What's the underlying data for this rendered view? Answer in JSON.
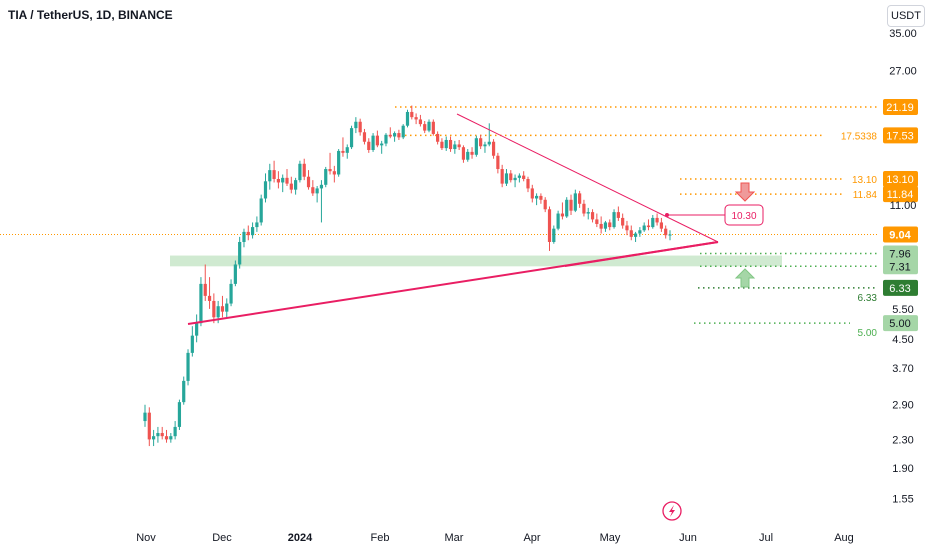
{
  "header": {
    "title": "TIA / TetherUS, 1D, BINANCE",
    "currency": "USDT"
  },
  "colors": {
    "up": "#26a69a",
    "down": "#ef5350",
    "trend": "#e91e63",
    "support": "#4caf50",
    "resist": "#ff9800"
  },
  "chart_data": {
    "type": "candlestick",
    "title": "TIA / TetherUS, 1D, BINANCE",
    "y_scale": "log",
    "y_ticks": [
      "35.00",
      "27.00",
      "21.19",
      "17.53",
      "13.10",
      "11.84",
      "11.00",
      "9.04",
      "7.96",
      "7.31",
      "6.33",
      "5.50",
      "5.00",
      "4.50",
      "3.70",
      "2.90",
      "2.30",
      "1.90",
      "1.55"
    ],
    "x_ticks": [
      "Nov",
      "Dec",
      "2024",
      "Feb",
      "Mar",
      "Apr",
      "May",
      "Jun",
      "Jul",
      "Aug"
    ],
    "last_price": "9.04",
    "price_labels": [
      {
        "text": "21.19",
        "color": "#ff9800"
      },
      {
        "text": "17.53",
        "color": "#ff9800"
      },
      {
        "text": "13.10",
        "color": "#ff9800"
      },
      {
        "text": "11.84",
        "color": "#ff9800"
      },
      {
        "text": "7.96",
        "color": "#a5d6a7"
      },
      {
        "text": "7.31",
        "color": "#a5d6a7"
      },
      {
        "text": "6.33",
        "color": "#2e7d32"
      },
      {
        "text": "5.00",
        "color": "#a5d6a7"
      }
    ],
    "level_annotations": [
      {
        "value": 21.19,
        "label": "",
        "color": "#ff9800"
      },
      {
        "value": 17.53,
        "label": "17.5338",
        "color": "#ff9800"
      },
      {
        "value": 13.1,
        "label": "13.10",
        "color": "#ff9800"
      },
      {
        "value": 11.84,
        "label": "11.84",
        "color": "#ff9800"
      },
      {
        "value": 7.96,
        "label": "",
        "color": "#4caf50"
      },
      {
        "value": 7.31,
        "label": "",
        "color": "#4caf50"
      },
      {
        "value": 6.33,
        "label": "6.33",
        "color": "#2e7d32"
      },
      {
        "value": 5.0,
        "label": "5.00",
        "color": "#4caf50"
      }
    ],
    "callout": "10.30",
    "series": [
      {
        "ohlc": [
          [
            2.6,
            2.9,
            2.5,
            2.75
          ],
          [
            2.75,
            2.85,
            2.2,
            2.3
          ],
          [
            2.3,
            2.45,
            2.2,
            2.35
          ],
          [
            2.35,
            2.5,
            2.25,
            2.4
          ],
          [
            2.4,
            2.5,
            2.3,
            2.35
          ],
          [
            2.35,
            2.45,
            2.25,
            2.3
          ],
          [
            2.3,
            2.4,
            2.25,
            2.35
          ],
          [
            2.35,
            2.6,
            2.3,
            2.5
          ],
          [
            2.5,
            3.0,
            2.45,
            2.95
          ],
          [
            2.95,
            3.5,
            2.9,
            3.4
          ],
          [
            3.4,
            4.2,
            3.3,
            4.1
          ],
          [
            4.1,
            4.9,
            4.0,
            4.6
          ],
          [
            4.6,
            5.3,
            4.4,
            5.0
          ],
          [
            5.0,
            6.8,
            4.9,
            6.5
          ],
          [
            6.5,
            7.4,
            5.8,
            6.0
          ],
          [
            6.0,
            6.8,
            5.5,
            5.8
          ],
          [
            5.8,
            6.1,
            5.0,
            5.2
          ],
          [
            5.2,
            5.8,
            5.0,
            5.6
          ],
          [
            5.6,
            6.0,
            5.2,
            5.4
          ],
          [
            5.4,
            5.9,
            5.2,
            5.7
          ],
          [
            5.7,
            6.7,
            5.6,
            6.5
          ],
          [
            6.5,
            7.6,
            6.4,
            7.4
          ],
          [
            7.4,
            8.9,
            7.2,
            8.6
          ],
          [
            8.6,
            9.4,
            8.3,
            9.2
          ],
          [
            9.2,
            9.6,
            8.7,
            9.0
          ],
          [
            9.0,
            9.8,
            8.8,
            9.5
          ],
          [
            9.5,
            10.2,
            9.2,
            9.8
          ],
          [
            9.8,
            11.8,
            9.6,
            11.5
          ],
          [
            11.5,
            13.6,
            11.2,
            12.9
          ],
          [
            12.9,
            14.5,
            12.2,
            13.9
          ],
          [
            13.9,
            14.8,
            12.8,
            13.1
          ],
          [
            13.1,
            13.8,
            12.3,
            12.8
          ],
          [
            12.8,
            13.5,
            12.0,
            13.2
          ],
          [
            13.2,
            14.0,
            12.5,
            12.7
          ],
          [
            12.7,
            13.3,
            11.9,
            12.2
          ],
          [
            12.2,
            13.2,
            11.8,
            13.0
          ],
          [
            13.0,
            14.8,
            12.8,
            14.5
          ],
          [
            14.5,
            15.0,
            13.0,
            13.3
          ],
          [
            13.3,
            13.9,
            12.2,
            12.4
          ],
          [
            12.4,
            13.0,
            11.7,
            11.9
          ],
          [
            11.9,
            12.5,
            11.2,
            12.3
          ],
          [
            12.3,
            13.0,
            9.8,
            12.6
          ],
          [
            12.6,
            14.2,
            12.4,
            14.0
          ],
          [
            14.0,
            15.6,
            13.5,
            13.8
          ],
          [
            13.8,
            14.3,
            12.8,
            13.5
          ],
          [
            13.5,
            16.0,
            13.3,
            15.8
          ],
          [
            15.8,
            17.3,
            15.2,
            15.6
          ],
          [
            15.6,
            16.5,
            15.0,
            16.2
          ],
          [
            16.2,
            18.7,
            16.0,
            18.4
          ],
          [
            18.4,
            19.8,
            17.8,
            19.2
          ],
          [
            19.2,
            19.6,
            17.5,
            17.9
          ],
          [
            17.9,
            18.3,
            16.5,
            16.8
          ],
          [
            16.8,
            17.2,
            15.6,
            15.9
          ],
          [
            15.9,
            17.8,
            15.7,
            17.5
          ],
          [
            17.5,
            18.1,
            16.2,
            16.4
          ],
          [
            16.4,
            16.9,
            15.5,
            16.6
          ],
          [
            16.6,
            17.8,
            16.3,
            17.6
          ],
          [
            17.6,
            18.5,
            17.2,
            17.4
          ],
          [
            17.4,
            18.0,
            16.8,
            17.8
          ],
          [
            17.8,
            18.2,
            17.0,
            17.3
          ],
          [
            17.3,
            18.9,
            17.1,
            18.7
          ],
          [
            18.7,
            20.8,
            18.5,
            20.5
          ],
          [
            20.5,
            21.4,
            19.5,
            19.8
          ],
          [
            19.8,
            20.3,
            18.9,
            19.5
          ],
          [
            19.5,
            20.1,
            18.6,
            18.9
          ],
          [
            18.9,
            19.3,
            17.8,
            18.1
          ],
          [
            18.1,
            19.5,
            17.9,
            19.2
          ],
          [
            19.2,
            19.5,
            17.5,
            17.7
          ],
          [
            17.7,
            18.0,
            16.5,
            16.8
          ],
          [
            16.8,
            17.2,
            15.9,
            16.1
          ],
          [
            16.1,
            17.4,
            15.8,
            17.0
          ],
          [
            17.0,
            17.4,
            15.7,
            16.0
          ],
          [
            16.0,
            16.9,
            15.5,
            16.5
          ],
          [
            16.5,
            17.0,
            15.9,
            16.2
          ],
          [
            16.2,
            16.4,
            14.6,
            14.9
          ],
          [
            14.9,
            16.0,
            14.7,
            15.7
          ],
          [
            15.7,
            16.2,
            15.0,
            15.4
          ],
          [
            15.4,
            17.5,
            15.2,
            17.2
          ],
          [
            17.2,
            17.6,
            16.0,
            16.3
          ],
          [
            16.3,
            16.8,
            15.6,
            16.5
          ],
          [
            16.5,
            19.0,
            16.3,
            16.8
          ],
          [
            16.8,
            17.1,
            15.0,
            15.3
          ],
          [
            15.3,
            15.6,
            13.6,
            14.0
          ],
          [
            14.0,
            14.4,
            12.4,
            12.7
          ],
          [
            12.7,
            14.0,
            12.5,
            13.6
          ],
          [
            13.6,
            13.9,
            12.8,
            13.0
          ],
          [
            13.0,
            13.5,
            12.4,
            13.2
          ],
          [
            13.2,
            13.6,
            12.8,
            13.4
          ],
          [
            13.4,
            13.8,
            12.9,
            13.1
          ],
          [
            13.1,
            13.3,
            12.0,
            12.3
          ],
          [
            12.3,
            12.6,
            11.2,
            11.5
          ],
          [
            11.5,
            11.9,
            11.0,
            11.7
          ],
          [
            11.7,
            11.9,
            11.1,
            11.4
          ],
          [
            11.4,
            11.6,
            10.5,
            10.7
          ],
          [
            10.7,
            10.9,
            8.1,
            8.6
          ],
          [
            8.6,
            9.6,
            8.5,
            9.4
          ],
          [
            9.4,
            10.6,
            9.3,
            10.4
          ],
          [
            10.4,
            11.2,
            10.0,
            10.2
          ],
          [
            10.2,
            11.6,
            10.1,
            11.4
          ],
          [
            11.4,
            11.8,
            10.3,
            10.6
          ],
          [
            10.6,
            12.2,
            10.5,
            11.9
          ],
          [
            11.9,
            12.1,
            10.8,
            11.1
          ],
          [
            11.1,
            11.4,
            10.2,
            10.4
          ],
          [
            10.4,
            10.8,
            10.0,
            10.5
          ],
          [
            10.5,
            10.7,
            9.8,
            10.0
          ],
          [
            10.0,
            10.4,
            9.5,
            9.7
          ],
          [
            9.7,
            10.2,
            9.1,
            9.4
          ],
          [
            9.4,
            9.9,
            9.2,
            9.8
          ],
          [
            9.8,
            10.0,
            9.3,
            9.5
          ],
          [
            9.5,
            10.7,
            9.4,
            10.5
          ],
          [
            10.5,
            10.9,
            9.9,
            10.1
          ],
          [
            10.1,
            10.4,
            9.4,
            9.6
          ],
          [
            9.6,
            9.9,
            9.0,
            9.3
          ],
          [
            9.3,
            9.6,
            8.7,
            8.9
          ],
          [
            8.9,
            9.2,
            8.6,
            9.1
          ],
          [
            9.1,
            9.5,
            8.9,
            9.3
          ],
          [
            9.3,
            9.8,
            9.2,
            9.6
          ],
          [
            9.6,
            10.0,
            9.3,
            9.5
          ],
          [
            9.5,
            10.3,
            9.4,
            10.1
          ],
          [
            10.1,
            10.4,
            9.6,
            9.8
          ],
          [
            9.8,
            10.1,
            9.2,
            9.4
          ],
          [
            9.4,
            9.6,
            8.8,
            9.0
          ],
          [
            9.0,
            9.3,
            8.7,
            9.04
          ]
        ]
      }
    ]
  }
}
